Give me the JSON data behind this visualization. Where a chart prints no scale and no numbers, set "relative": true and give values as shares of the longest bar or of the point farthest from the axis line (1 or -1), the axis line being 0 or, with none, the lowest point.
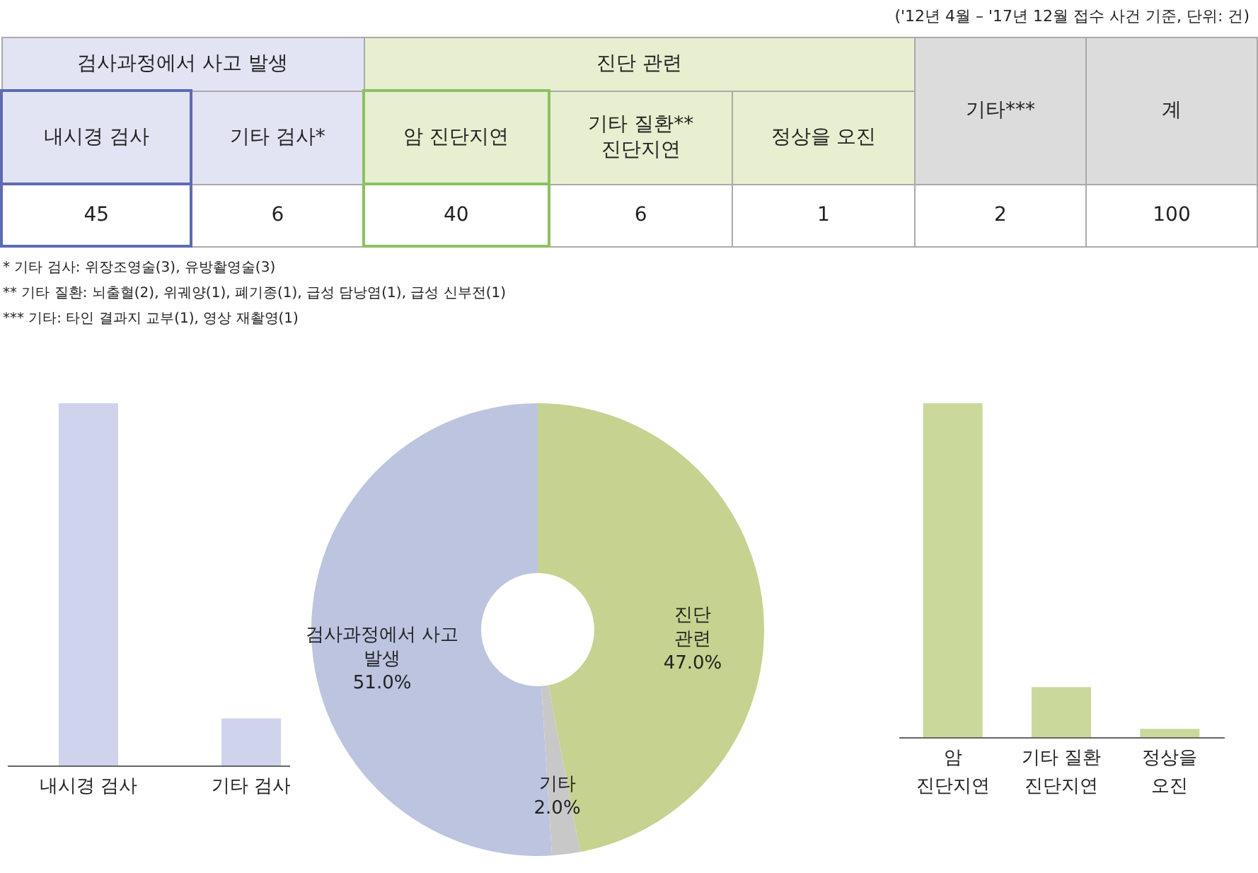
{
  "chart_data": [
    {
      "type": "other",
      "subtitle": "('12년 4월 – '17년 12월 접수 사건 기준, 단위: 건)",
      "categories": [
        "내시경 검사",
        "기타 검사*",
        "암 진단지연",
        "기타 질환** 진단지연",
        "정상을 오진",
        "기타***",
        "계"
      ],
      "values": [
        45,
        6,
        40,
        6,
        1,
        2,
        100
      ],
      "data_labels": true,
      "colors": [
        "#e2e3f3",
        "#e2e3f3",
        "#e7efd0",
        "#e7efd0",
        "#e7efd0",
        "#dcdcdc",
        "#dcdcdc"
      ],
      "annotations": [
        "검사과정에서 사고 발생",
        "진단 관련",
        "* 기타 검사: 위장조영술(3), 유방촬영술(3)",
        "** 기타 질환: 뇌출혈(2), 위궤양(1), 폐기종(1), 급성 담낭염(1), 급성 신부전(1)",
        "*** 기타: 타인 결과지 교부(1), 영상 재촬영(1)"
      ]
    },
    {
      "type": "bar",
      "relative": true,
      "categories": [
        "내시경 검사",
        "기타 검사"
      ],
      "values": [
        1,
        0.13
      ],
      "color": "#cfd4ec"
    },
    {
      "type": "donut",
      "categories": [
        "진단 관련",
        "기타",
        "검사과정에서 사고 발생"
      ],
      "values": [
        47,
        2,
        51
      ],
      "colors": [
        "#c6d28f",
        "#c8c8c8",
        "#bcc4e0"
      ],
      "value_labels": [
        "47.0%",
        "2.0%",
        "51.0%"
      ]
    },
    {
      "type": "bar",
      "relative": true,
      "categories": [
        "암 진단지연",
        "기타 질환 진단지연",
        "정상을 오진"
      ],
      "values": [
        1,
        0.15,
        0.025
      ],
      "color": "#cbd89c"
    }
  ]
}
